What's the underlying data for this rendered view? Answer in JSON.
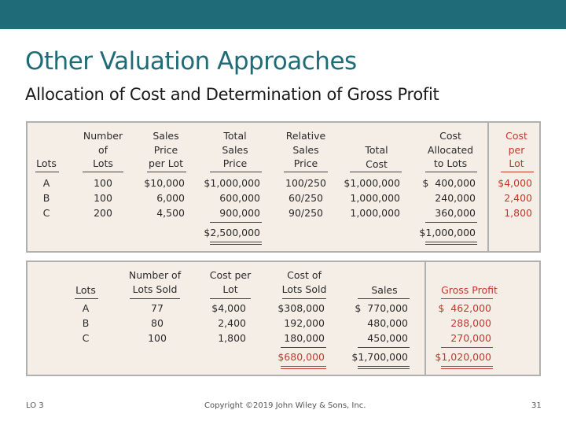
{
  "header": {
    "title": "Other Valuation Approaches",
    "subtitle": "Allocation of Cost and Determination of Gross Profit"
  },
  "table1": {
    "headers": {
      "lots": "Lots",
      "number_of_lots": [
        "Number",
        "of",
        "Lots"
      ],
      "sales_price_per_lot": [
        "Sales",
        "Price",
        "per Lot"
      ],
      "total_sales_price": [
        "Total",
        "Sales",
        "Price"
      ],
      "relative_sales_price": [
        "Relative",
        "Sales",
        "Price"
      ],
      "total_cost": [
        "Total",
        "Cost"
      ],
      "cost_allocated": [
        "Cost",
        "Allocated",
        "to Lots"
      ],
      "cost_per_lot": [
        "Cost",
        "per",
        "Lot"
      ]
    },
    "rows": [
      {
        "lot": "A",
        "number": "100",
        "price": "$10,000",
        "total_sales": "$1,000,000",
        "relative": "100/250",
        "total_cost": "$1,000,000",
        "allocated": "$  400,000",
        "cost_per_lot": "$4,000"
      },
      {
        "lot": "B",
        "number": "100",
        "price": "6,000",
        "total_sales": "600,000",
        "relative": "60/250",
        "total_cost": "1,000,000",
        "allocated": "240,000",
        "cost_per_lot": "2,400"
      },
      {
        "lot": "C",
        "number": "200",
        "price": "4,500",
        "total_sales": "900,000",
        "relative": "90/250",
        "total_cost": "1,000,000",
        "allocated": "360,000",
        "cost_per_lot": "1,800"
      }
    ],
    "totals": {
      "total_sales": "$2,500,000",
      "allocated": "$1,000,000"
    }
  },
  "table2": {
    "headers": {
      "lots": "Lots",
      "number_sold": [
        "Number of",
        "Lots Sold"
      ],
      "cost_per_lot": [
        "Cost per",
        "Lot"
      ],
      "cost_of_lots_sold": [
        "Cost of",
        "Lots Sold"
      ],
      "sales": "Sales",
      "gross_profit": "Gross Profit"
    },
    "rows": [
      {
        "lot": "A",
        "sold": "77",
        "cost_per_lot": "$4,000",
        "cost_sold": "$308,000",
        "sales": "$  770,000",
        "profit": "$  462,000"
      },
      {
        "lot": "B",
        "sold": "80",
        "cost_per_lot": "2,400",
        "cost_sold": "192,000",
        "sales": "480,000",
        "profit": "288,000"
      },
      {
        "lot": "C",
        "sold": "100",
        "cost_per_lot": "1,800",
        "cost_sold": "180,000",
        "sales": "450,000",
        "profit": "270,000"
      }
    ],
    "totals": {
      "cost_sold": "$680,000",
      "sales": "$1,700,000",
      "profit": "$1,020,000"
    }
  },
  "footer": {
    "lo": "LO 3",
    "copyright": "Copyright ©2019 John Wiley & Sons, Inc.",
    "page": "31"
  },
  "colors": {
    "accent": "#1f6b77",
    "highlight": "#c0392b",
    "panel": "#f5eee6"
  }
}
